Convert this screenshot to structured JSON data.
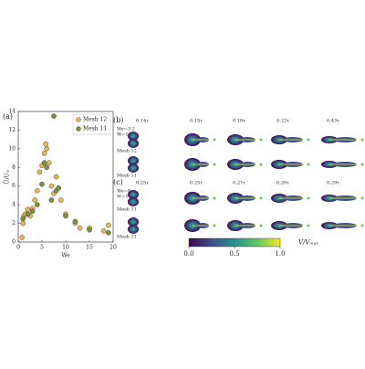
{
  "chart_data": {
    "type": "scatter",
    "panel_label": "(a)",
    "x_label": "We",
    "y_label": "Ū/Uᵢₙ",
    "xlim": [
      0,
      20
    ],
    "xticks": [
      0,
      5,
      10,
      15,
      20
    ],
    "ylim": [
      0,
      14
    ],
    "yticks": [
      0,
      2,
      4,
      6,
      8,
      10,
      12,
      14
    ],
    "legend": "upper right",
    "series": [
      {
        "name": "Mesh 12",
        "color": "#e3b55a",
        "x": [
          0.8,
          1,
          1.2,
          1.5,
          2,
          2.5,
          3,
          3.5,
          4,
          4.5,
          5,
          5.5,
          5.8,
          6,
          6.5,
          7,
          7.5,
          8,
          9,
          10,
          12,
          13,
          15,
          18,
          19
        ],
        "values": [
          0.5,
          2,
          2.8,
          3,
          3.5,
          2.8,
          3.6,
          4.5,
          5.5,
          7.5,
          8.2,
          9.5,
          10.5,
          10,
          8.5,
          6,
          5.2,
          7,
          4.5,
          3,
          2,
          1.5,
          1.5,
          1.2,
          1.8
        ]
      },
      {
        "name": "Mesh 11",
        "color": "#7f8f3a",
        "x": [
          1,
          2,
          3,
          4,
          5,
          5.5,
          6,
          7.5,
          7,
          8,
          8.5,
          10,
          12,
          15,
          19
        ],
        "values": [
          2.5,
          3,
          3.3,
          4,
          6.2,
          8.5,
          8,
          13.5,
          4.5,
          5.5,
          5.8,
          2.8,
          2.2,
          1.3,
          1
        ]
      }
    ]
  },
  "panels": {
    "b": {
      "label": "(b)",
      "we": "We=3.2",
      "w": "W=1.3",
      "times": [
        "0.14τ",
        "0.15τ",
        "0.18τ",
        "0.22τ",
        "0.43τ"
      ],
      "rows": [
        "Mesh 12",
        "Mesh 11"
      ]
    },
    "c": {
      "label": "(c)",
      "we": "We=8",
      "w": "W=1.4",
      "times": [
        "0.25τ",
        "0.25τ",
        "0.27τ",
        "0.28τ",
        "0.29τ"
      ],
      "rows": [
        "Mesh 11",
        "Mesh 11"
      ]
    },
    "colorbar": {
      "label": "V/Vₘₐₓ",
      "lim": [
        0,
        1
      ],
      "ticks": [
        {
          "value": 0,
          "label": "0.0"
        },
        0.5,
        {
          "value": 1,
          "label": "1.0"
        }
      ]
    }
  }
}
